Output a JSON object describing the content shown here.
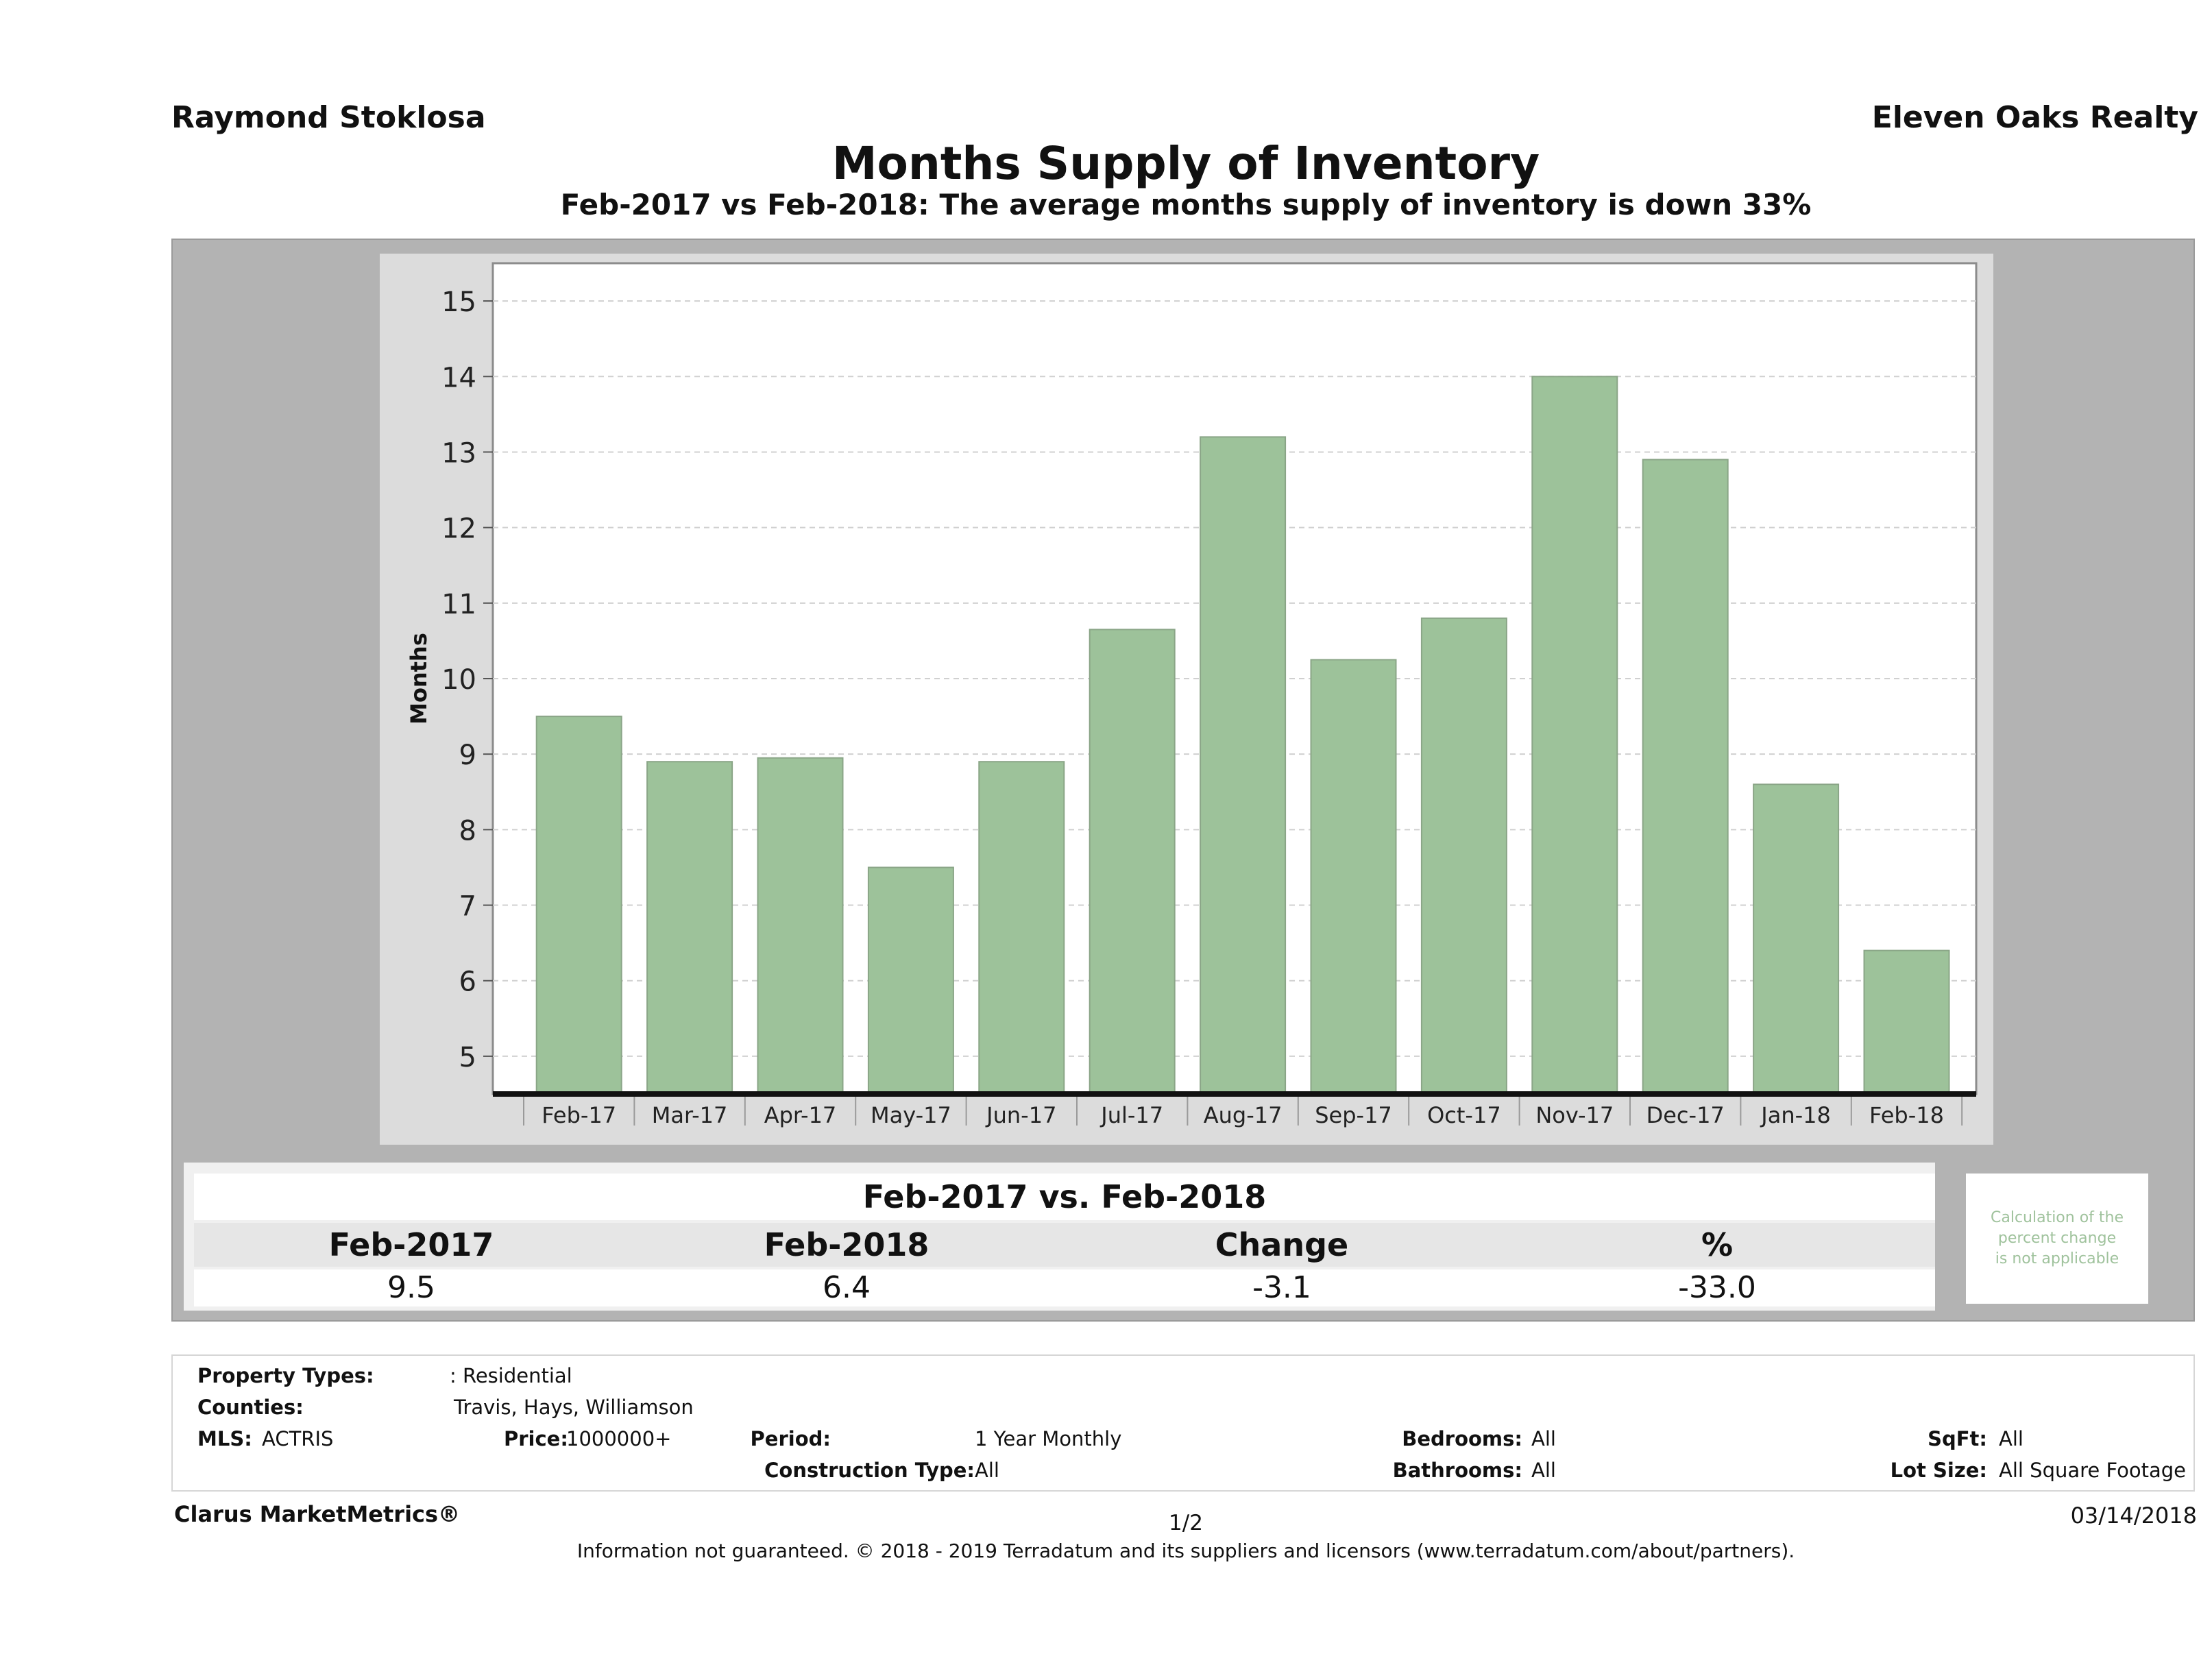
{
  "header": {
    "agent": "Raymond Stoklosa",
    "company": "Eleven Oaks Realty",
    "title": "Months Supply of Inventory",
    "subtitle": "Feb-2017 vs Feb-2018: The average months supply of inventory is down 33%"
  },
  "chart_data": {
    "type": "bar",
    "categories": [
      "Feb-17",
      "Mar-17",
      "Apr-17",
      "May-17",
      "Jun-17",
      "Jul-17",
      "Aug-17",
      "Sep-17",
      "Oct-17",
      "Nov-17",
      "Dec-17",
      "Jan-18",
      "Feb-18"
    ],
    "values": [
      9.5,
      8.9,
      8.95,
      7.5,
      8.9,
      10.65,
      13.2,
      10.25,
      10.8,
      14.0,
      12.9,
      8.6,
      6.4
    ],
    "ylabel": "Months",
    "xlabel": "",
    "ylim": [
      4.5,
      15.5
    ],
    "yticks": [
      5,
      6,
      7,
      8,
      9,
      10,
      11,
      12,
      13,
      14,
      15
    ],
    "grid": true,
    "bar_color": "#9dc29a",
    "bar_edge_color": "#8aa587"
  },
  "summary": {
    "title": "Feb-2017 vs. Feb-2018",
    "headers": [
      "Feb-2017",
      "Feb-2018",
      "Change",
      "%"
    ],
    "values": [
      "9.5",
      "6.4",
      "-3.1",
      "-33.0"
    ],
    "note_lines": [
      "Calculation of the",
      "percent change",
      "is not applicable"
    ]
  },
  "filters": {
    "property_types_label": "Property Types:",
    "property_types_value": ": Residential",
    "counties_label": "Counties:",
    "counties_value": "Travis, Hays, Williamson",
    "mls_label": "MLS:",
    "mls_value": "ACTRIS",
    "price_label": "Price:",
    "price_value": "1000000+",
    "period_label": "Period:",
    "period_value": "1 Year Monthly",
    "construction_label": "Construction Type:",
    "construction_value": "All",
    "bedrooms_label": "Bedrooms:",
    "bedrooms_value": "All",
    "bathrooms_label": "Bathrooms:",
    "bathrooms_value": "All",
    "sqft_label": "SqFt:",
    "sqft_value": "All",
    "lotsize_label": "Lot Size:",
    "lotsize_value": "All Square Footage"
  },
  "footer": {
    "brand": "Clarus MarketMetrics®",
    "page": "1/2",
    "date": "03/14/2018",
    "disclaimer": "Information not guaranteed. © 2018 - 2019 Terradatum and its suppliers and licensors (www.terradatum.com/about/partners)."
  }
}
